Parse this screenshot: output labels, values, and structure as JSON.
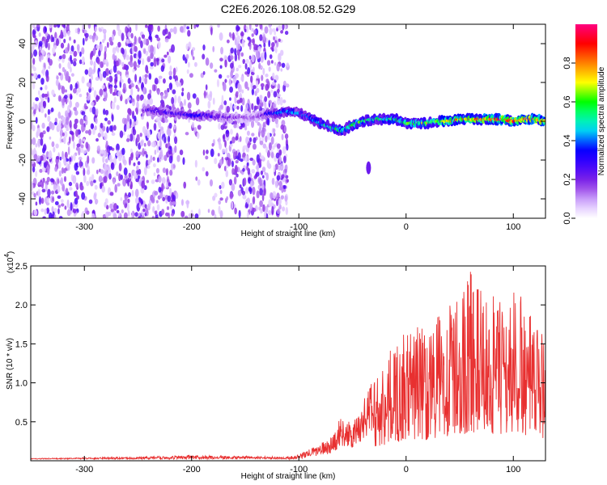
{
  "chart_data": [
    {
      "type": "heatmap",
      "title": "C2E6.2026.108.08.52.G29",
      "xlabel": "Height of straight line (km)",
      "ylabel": "Frequency (Hz)",
      "xlim": [
        -350,
        130
      ],
      "ylim": [
        -50,
        50
      ],
      "xticks": [
        -300,
        -200,
        -100,
        0,
        100
      ],
      "xtick_labels": [
        "-300",
        "-200",
        "-100",
        "0",
        "100"
      ],
      "yticks": [
        -40,
        -20,
        0,
        20,
        40
      ],
      "ytick_labels": [
        "-40",
        "-20",
        "0",
        "20",
        "40"
      ],
      "grid": false,
      "colorbar": {
        "label": "Normalized spectral amplitude",
        "range": [
          0,
          1
        ],
        "ticks": [
          0,
          0.2,
          0.4,
          0.6,
          0.8
        ],
        "tick_labels": [
          "0.0",
          "0.2",
          "0.4",
          "0.6",
          "0.8"
        ],
        "colors": [
          "#ffffff",
          "#d8b8ff",
          "#8a2be2",
          "#3300ff",
          "#0000ff",
          "#00ffff",
          "#00ff00",
          "#ffff00",
          "#ff8000",
          "#ff0000",
          "#ff0080"
        ]
      },
      "noise_region": {
        "x": [
          -350,
          -110
        ],
        "freq": [
          -50,
          50
        ]
      },
      "ridge": {
        "x": [
          -245,
          -230,
          -215,
          -200,
          -185,
          -170,
          -155,
          -140,
          -130,
          -120,
          -110,
          -100,
          -90,
          -80,
          -70,
          -60,
          -50,
          -40,
          -30,
          -20,
          -10,
          0,
          10,
          20,
          30,
          40,
          50,
          60,
          70,
          80,
          90,
          100,
          110,
          120,
          130
        ],
        "freq": [
          6,
          5,
          4,
          3,
          3,
          2,
          2,
          2,
          4,
          4,
          5,
          4,
          2,
          -1,
          -3,
          -5,
          -2,
          0,
          1,
          1,
          1,
          -1,
          -1,
          -1,
          0,
          0,
          1,
          1,
          1,
          1,
          1,
          0,
          1,
          1,
          0
        ],
        "amplitude": [
          0.25,
          0.28,
          0.3,
          0.32,
          0.3,
          0.22,
          0.18,
          0.15,
          0.3,
          0.4,
          0.45,
          0.4,
          0.45,
          0.5,
          0.55,
          0.55,
          0.6,
          0.6,
          0.55,
          0.55,
          0.6,
          0.6,
          0.65,
          0.7,
          0.7,
          0.75,
          0.8,
          0.85,
          0.85,
          0.9,
          0.9,
          0.85,
          0.9,
          0.9,
          0.85
        ]
      },
      "side_blob": {
        "x": -35,
        "freq": -24
      }
    },
    {
      "type": "line",
      "xlabel": "Height of straight line (km)",
      "ylabel": "SNR (10 * v/v)",
      "y_exponent_label": "(x10",
      "y_exponent_power": "4",
      "y_exponent_close": ")",
      "xlim": [
        -350,
        130
      ],
      "ylim": [
        0,
        2.5
      ],
      "xticks": [
        -300,
        -200,
        -100,
        0,
        100
      ],
      "xtick_labels": [
        "-300",
        "-200",
        "-100",
        "0",
        "100"
      ],
      "yticks": [
        0.5,
        1.0,
        1.5,
        2.0,
        2.5
      ],
      "ytick_labels": [
        "0.5",
        "1.0",
        "1.5",
        "2.0",
        "2.5"
      ],
      "grid": false,
      "series": [
        {
          "name": "SNR",
          "color": "#e83030",
          "envelope_x": [
            -350,
            -300,
            -250,
            -200,
            -150,
            -110,
            -100,
            -90,
            -80,
            -70,
            -60,
            -50,
            -40,
            -30,
            -20,
            -10,
            0,
            10,
            20,
            30,
            40,
            50,
            60,
            70,
            80,
            90,
            100,
            110,
            120,
            130
          ],
          "envelope_y": [
            0.03,
            0.04,
            0.05,
            0.07,
            0.06,
            0.05,
            0.08,
            0.15,
            0.22,
            0.3,
            0.6,
            0.45,
            0.8,
            1.1,
            1.3,
            1.55,
            1.65,
            1.8,
            1.75,
            1.9,
            2.05,
            2.1,
            2.5,
            2.2,
            2.15,
            2.05,
            2.25,
            2.1,
            1.7,
            1.95
          ]
        }
      ]
    }
  ]
}
